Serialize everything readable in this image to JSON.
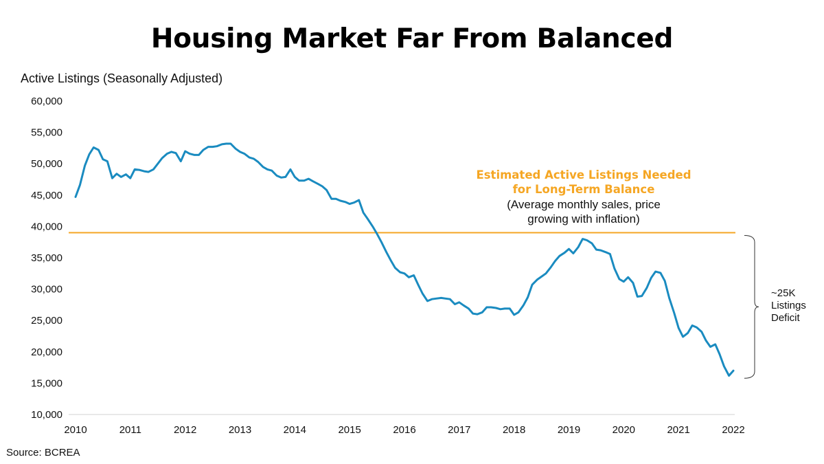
{
  "chart_data": {
    "type": "line",
    "title": "Housing Market Far From Balanced",
    "ylabel": "Active Listings (Seasonally Adjusted)",
    "source": "Source: BCREA",
    "ylim": [
      10000,
      60000
    ],
    "xlim": [
      2010,
      2022
    ],
    "yticks": [
      "10,000",
      "15,000",
      "20,000",
      "25,000",
      "30,000",
      "35,000",
      "40,000",
      "45,000",
      "50,000",
      "55,000",
      "60,000"
    ],
    "xticks": [
      "2010",
      "2011",
      "2012",
      "2013",
      "2014",
      "2015",
      "2016",
      "2017",
      "2018",
      "2019",
      "2020",
      "2021",
      "2022"
    ],
    "grid": false,
    "series": [
      {
        "color": "#1a8bc0",
        "x": [
          2010.0,
          2010.08,
          2010.17,
          2010.25,
          2010.33,
          2010.42,
          2010.5,
          2010.58,
          2010.67,
          2010.75,
          2010.83,
          2010.92,
          2011.0,
          2011.08,
          2011.17,
          2011.25,
          2011.33,
          2011.42,
          2011.5,
          2011.58,
          2011.67,
          2011.75,
          2011.83,
          2011.92,
          2012.0,
          2012.08,
          2012.17,
          2012.25,
          2012.33,
          2012.42,
          2012.5,
          2012.58,
          2012.67,
          2012.75,
          2012.83,
          2012.92,
          2013.0,
          2013.08,
          2013.17,
          2013.25,
          2013.33,
          2013.42,
          2013.5,
          2013.58,
          2013.67,
          2013.75,
          2013.83,
          2013.92,
          2014.0,
          2014.08,
          2014.17,
          2014.25,
          2014.33,
          2014.42,
          2014.5,
          2014.58,
          2014.67,
          2014.75,
          2014.83,
          2014.92,
          2015.0,
          2015.08,
          2015.17,
          2015.25,
          2015.33,
          2015.42,
          2015.5,
          2015.58,
          2015.67,
          2015.75,
          2015.83,
          2015.92,
          2016.0,
          2016.08,
          2016.17,
          2016.25,
          2016.33,
          2016.42,
          2016.5,
          2016.58,
          2016.67,
          2016.75,
          2016.83,
          2016.92,
          2017.0,
          2017.08,
          2017.17,
          2017.25,
          2017.33,
          2017.42,
          2017.5,
          2017.58,
          2017.67,
          2017.75,
          2017.83,
          2017.92,
          2018.0,
          2018.08,
          2018.17,
          2018.25,
          2018.33,
          2018.42,
          2018.5,
          2018.58,
          2018.67,
          2018.75,
          2018.83,
          2018.92,
          2019.0,
          2019.08,
          2019.17,
          2019.25,
          2019.33,
          2019.42,
          2019.5,
          2019.58,
          2019.67,
          2019.75,
          2019.83,
          2019.92,
          2020.0,
          2020.08,
          2020.17,
          2020.25,
          2020.33,
          2020.42,
          2020.5,
          2020.58,
          2020.67,
          2020.75,
          2020.83,
          2020.92,
          2021.0,
          2021.08,
          2021.17,
          2021.25,
          2021.33,
          2021.42,
          2021.5,
          2021.58,
          2021.67,
          2021.75,
          2021.83,
          2021.92,
          2022.0
        ],
        "values": [
          44700,
          46600,
          49700,
          51500,
          52600,
          52200,
          50700,
          50400,
          47700,
          48400,
          47900,
          48300,
          47700,
          49100,
          49000,
          48800,
          48700,
          49100,
          50000,
          50900,
          51600,
          51900,
          51700,
          50400,
          52000,
          51600,
          51400,
          51400,
          52200,
          52700,
          52700,
          52800,
          53100,
          53200,
          53200,
          52400,
          51900,
          51600,
          51000,
          50800,
          50300,
          49500,
          49100,
          48900,
          48100,
          47800,
          47900,
          49100,
          47900,
          47300,
          47300,
          47600,
          47200,
          46800,
          46400,
          45800,
          44400,
          44400,
          44100,
          43900,
          43600,
          43800,
          44200,
          42200,
          41200,
          40000,
          38800,
          37500,
          35900,
          34600,
          33400,
          32700,
          32500,
          31900,
          32200,
          30700,
          29300,
          28100,
          28400,
          28500,
          28600,
          28500,
          28400,
          27600,
          27900,
          27400,
          26900,
          26100,
          26000,
          26300,
          27100,
          27100,
          27000,
          26800,
          26900,
          26900,
          25900,
          26300,
          27400,
          28700,
          30700,
          31500,
          32000,
          32500,
          33500,
          34500,
          35300,
          35800,
          36400,
          35700,
          36700,
          38000,
          37800,
          37300,
          36300,
          36200,
          35900,
          35600,
          33300,
          31600,
          31200,
          31900,
          31000,
          28800,
          28900,
          30200,
          31800,
          32800,
          32600,
          31300,
          28600,
          26200,
          23800,
          22400,
          23000,
          24200,
          23900,
          23200,
          21800,
          20800,
          21200,
          19600,
          17700,
          16200,
          17000
        ]
      }
    ],
    "reference_line": {
      "value": 39000,
      "color": "#f5a623"
    },
    "annotations": {
      "balance_title_line1": "Estimated Active Listings Needed",
      "balance_title_line2": "for Long-Term Balance",
      "balance_sub_line1": "(Average monthly sales, price",
      "balance_sub_line2": "growing with inflation)",
      "deficit_line1": "~25K",
      "deficit_line2": "Listings",
      "deficit_line3": "Deficit"
    },
    "deficit_bracket": {
      "top": 39000,
      "bottom": 16000
    }
  }
}
